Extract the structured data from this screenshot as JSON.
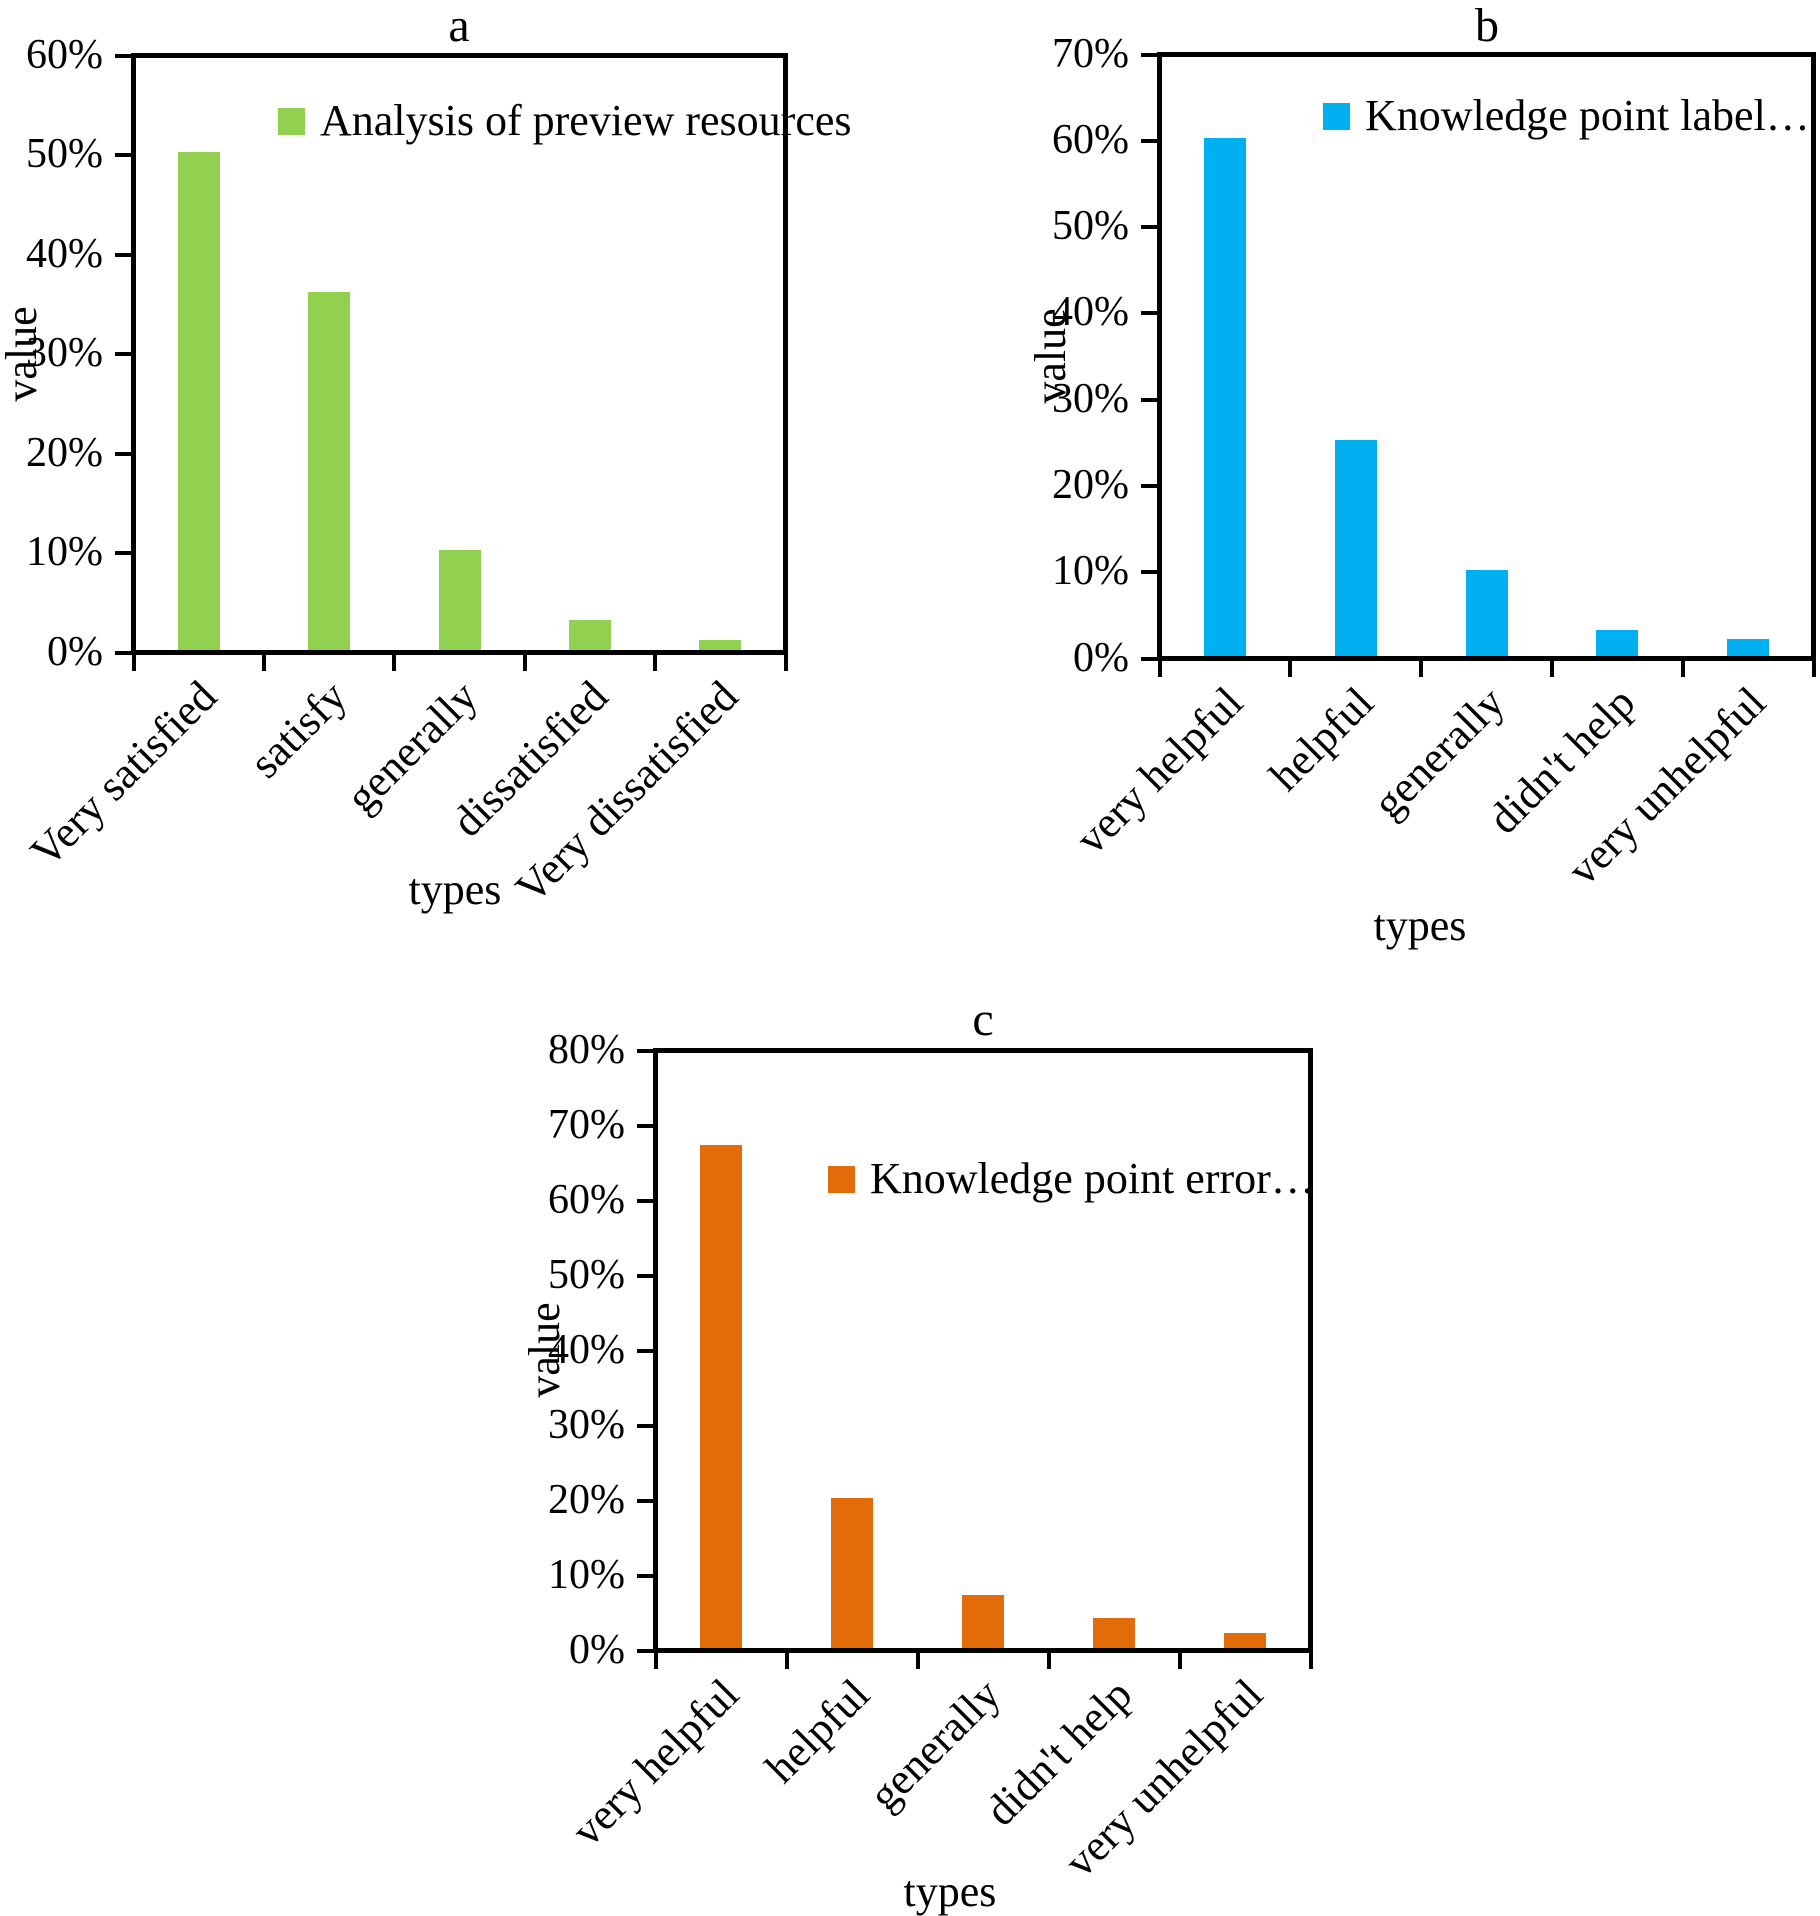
{
  "figure_background": "#ffffff",
  "axis_color": "#000000",
  "chart_data": [
    {
      "panel": "a",
      "type": "bar",
      "title": "a",
      "legend": {
        "label": "Analysis of preview resources",
        "swatch_color": "#92D050",
        "position": "top-inside"
      },
      "categories": [
        "Very satisfied",
        "satisfy",
        "generally",
        "dissatisfied",
        "Very dissatisfied"
      ],
      "values": [
        50,
        36,
        10,
        3,
        1
      ],
      "value_unit": "%",
      "bar_color": "#92D050",
      "xlabel": "types",
      "ylabel": "value",
      "ylim": [
        0,
        60
      ],
      "ytick_step": 10,
      "ytick_labels": [
        "0%",
        "10%",
        "20%",
        "30%",
        "40%",
        "50%",
        "60%"
      ],
      "grid": false
    },
    {
      "panel": "b",
      "type": "bar",
      "title": "b",
      "legend": {
        "label": "Knowledge point label…",
        "swatch_color": "#00B0F0",
        "position": "top-inside"
      },
      "categories": [
        "very helpful",
        "helpful",
        "generally",
        "didn't help",
        "very unhelpful"
      ],
      "values": [
        60,
        25,
        10,
        3,
        2
      ],
      "value_unit": "%",
      "bar_color": "#00B0F0",
      "xlabel": "types",
      "ylabel": "value",
      "ylim": [
        0,
        70
      ],
      "ytick_step": 10,
      "ytick_labels": [
        "0%",
        "10%",
        "20%",
        "30%",
        "40%",
        "50%",
        "60%",
        "70%"
      ],
      "grid": false
    },
    {
      "panel": "c",
      "type": "bar",
      "title": "c",
      "legend": {
        "label": "Knowledge point error…",
        "swatch_color": "#E36C0A",
        "position": "top-inside"
      },
      "categories": [
        "very helpful",
        "helpful",
        "generally",
        "didn't help",
        "very unhelpful"
      ],
      "values": [
        67,
        20,
        7,
        4,
        2
      ],
      "value_unit": "%",
      "bar_color": "#E36C0A",
      "xlabel": "types",
      "ylabel": "value",
      "ylim": [
        0,
        80
      ],
      "ytick_step": 10,
      "ytick_labels": [
        "0%",
        "10%",
        "20%",
        "30%",
        "40%",
        "50%",
        "60%",
        "70%",
        "80%"
      ],
      "grid": false
    }
  ]
}
